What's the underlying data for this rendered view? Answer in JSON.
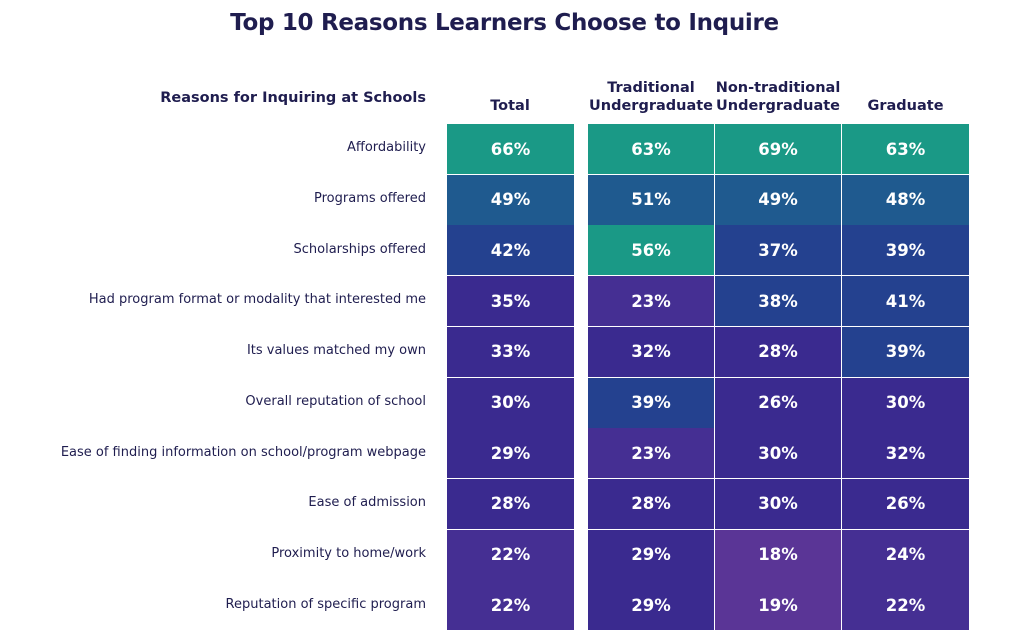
{
  "chart_data": {
    "type": "table",
    "title": "Top 10 Reasons Learners Choose to Inquire",
    "row_header": "Reasons for Inquiring at Schools",
    "columns": [
      "Total",
      "Traditional Undergraduate",
      "Non-traditional Undergraduate",
      "Graduate"
    ],
    "rows": [
      {
        "label": "Affordability",
        "values": [
          66,
          63,
          69,
          63
        ]
      },
      {
        "label": "Programs offered",
        "values": [
          49,
          51,
          49,
          48
        ]
      },
      {
        "label": "Scholarships offered",
        "values": [
          42,
          56,
          37,
          39
        ]
      },
      {
        "label": "Had program format or modality that interested me",
        "values": [
          35,
          23,
          38,
          41
        ]
      },
      {
        "label": "Its values matched my own",
        "values": [
          33,
          32,
          28,
          39
        ]
      },
      {
        "label": "Overall reputation of school",
        "values": [
          30,
          39,
          26,
          30
        ]
      },
      {
        "label": "Ease of finding information on school/program webpage",
        "values": [
          29,
          23,
          30,
          32
        ]
      },
      {
        "label": "Ease of admission",
        "values": [
          28,
          28,
          30,
          26
        ]
      },
      {
        "label": "Proximity to home/work",
        "values": [
          22,
          29,
          18,
          24
        ]
      },
      {
        "label": "Reputation of specific program",
        "values": [
          22,
          29,
          19,
          22
        ]
      }
    ],
    "value_suffix": "%",
    "colors": {
      "high": "#1a9986",
      "mid": "#1f5a8f",
      "low": "#3a2a8f",
      "lowest": "#5a3596"
    }
  }
}
